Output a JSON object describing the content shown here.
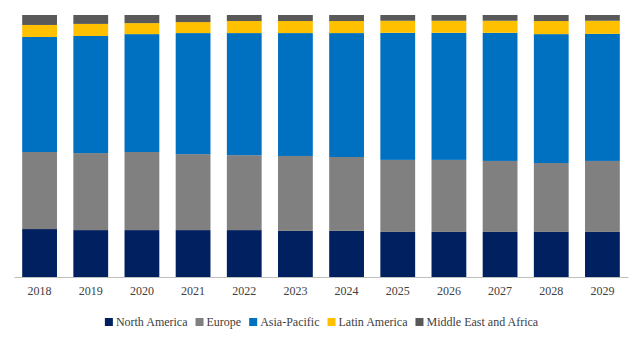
{
  "chart_data": {
    "type": "bar",
    "stacked": true,
    "tick_labels": "x",
    "legend": "bottom",
    "categories": [
      "2018",
      "2019",
      "2020",
      "2021",
      "2022",
      "2023",
      "2024",
      "2025",
      "2026",
      "2027",
      "2028",
      "2029"
    ],
    "ylim": [
      0,
      100
    ],
    "series": [
      {
        "name": "North America",
        "color": "#002060",
        "values": [
          18.3,
          17.9,
          17.9,
          17.9,
          17.9,
          17.6,
          17.6,
          17.2,
          17.2,
          17.2,
          17.2,
          17.2
        ]
      },
      {
        "name": "Europe",
        "color": "#808080",
        "values": [
          29.4,
          29.4,
          29.8,
          29.0,
          28.6,
          28.6,
          28.2,
          27.5,
          27.5,
          27.1,
          26.3,
          27.1
        ]
      },
      {
        "name": "Asia-Pacific",
        "color": "#0070c0",
        "values": [
          43.9,
          44.7,
          45.0,
          46.2,
          46.6,
          46.9,
          47.3,
          48.5,
          48.5,
          48.9,
          49.2,
          48.5
        ]
      },
      {
        "name": "Latin America",
        "color": "#ffc000",
        "values": [
          4.6,
          4.6,
          4.2,
          4.2,
          4.6,
          4.6,
          4.6,
          4.6,
          4.6,
          4.6,
          5.0,
          5.0
        ]
      },
      {
        "name": "Middle East and Africa",
        "color": "#595959",
        "values": [
          3.8,
          3.4,
          3.1,
          2.7,
          2.3,
          2.3,
          2.3,
          2.2,
          2.2,
          2.2,
          2.3,
          2.2
        ]
      }
    ]
  }
}
